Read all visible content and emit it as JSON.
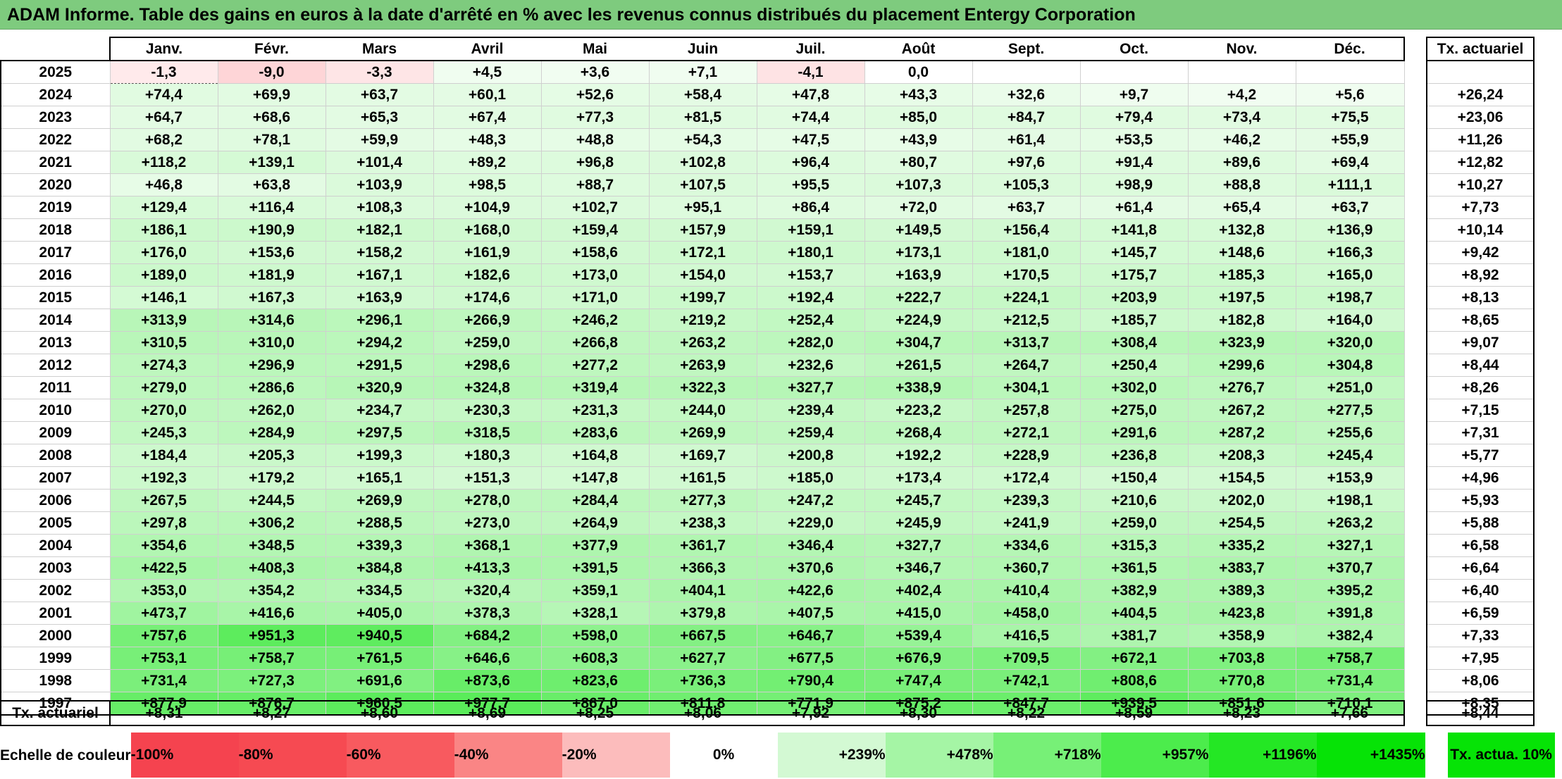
{
  "title": "ADAM Informe. Table des gains en euros à la date d'arrêté en % avec les revenus connus distribués du placement Entergy Corporation",
  "months": [
    "Janv.",
    "Févr.",
    "Mars",
    "Avril",
    "Mai",
    "Juin",
    "Juil.",
    "Août",
    "Sept.",
    "Oct.",
    "Nov.",
    "Déc."
  ],
  "tx_header": "Tx. actuariel",
  "rows": [
    {
      "year": "2025",
      "values": [
        "-1,3",
        "-9,0",
        "-3,3",
        "+4,5",
        "+3,6",
        "+7,1",
        "-4,1",
        "0,0",
        "",
        "",
        "",
        ""
      ],
      "tx": ""
    },
    {
      "year": "2024",
      "values": [
        "+74,4",
        "+69,9",
        "+63,7",
        "+60,1",
        "+52,6",
        "+58,4",
        "+47,8",
        "+43,3",
        "+32,6",
        "+9,7",
        "+4,2",
        "+5,6"
      ],
      "tx": "+26,24"
    },
    {
      "year": "2023",
      "values": [
        "+64,7",
        "+68,6",
        "+65,3",
        "+67,4",
        "+77,3",
        "+81,5",
        "+74,4",
        "+85,0",
        "+84,7",
        "+79,4",
        "+73,4",
        "+75,5"
      ],
      "tx": "+23,06"
    },
    {
      "year": "2022",
      "values": [
        "+68,2",
        "+78,1",
        "+59,9",
        "+48,3",
        "+48,8",
        "+54,3",
        "+47,5",
        "+43,9",
        "+61,4",
        "+53,5",
        "+46,2",
        "+55,9"
      ],
      "tx": "+11,26"
    },
    {
      "year": "2021",
      "values": [
        "+118,2",
        "+139,1",
        "+101,4",
        "+89,2",
        "+96,8",
        "+102,8",
        "+96,4",
        "+80,7",
        "+97,6",
        "+91,4",
        "+89,6",
        "+69,4"
      ],
      "tx": "+12,82"
    },
    {
      "year": "2020",
      "values": [
        "+46,8",
        "+63,8",
        "+103,9",
        "+98,5",
        "+88,7",
        "+107,5",
        "+95,5",
        "+107,3",
        "+105,3",
        "+98,9",
        "+88,8",
        "+111,1"
      ],
      "tx": "+10,27"
    },
    {
      "year": "2019",
      "values": [
        "+129,4",
        "+116,4",
        "+108,3",
        "+104,9",
        "+102,7",
        "+95,1",
        "+86,4",
        "+72,0",
        "+63,7",
        "+61,4",
        "+65,4",
        "+63,7"
      ],
      "tx": "+7,73"
    },
    {
      "year": "2018",
      "values": [
        "+186,1",
        "+190,9",
        "+182,1",
        "+168,0",
        "+159,4",
        "+157,9",
        "+159,1",
        "+149,5",
        "+156,4",
        "+141,8",
        "+132,8",
        "+136,9"
      ],
      "tx": "+10,14"
    },
    {
      "year": "2017",
      "values": [
        "+176,0",
        "+153,6",
        "+158,2",
        "+161,9",
        "+158,6",
        "+172,1",
        "+180,1",
        "+173,1",
        "+181,0",
        "+145,7",
        "+148,6",
        "+166,3"
      ],
      "tx": "+9,42"
    },
    {
      "year": "2016",
      "values": [
        "+189,0",
        "+181,9",
        "+167,1",
        "+182,6",
        "+173,0",
        "+154,0",
        "+153,7",
        "+163,9",
        "+170,5",
        "+175,7",
        "+185,3",
        "+165,0"
      ],
      "tx": "+8,92"
    },
    {
      "year": "2015",
      "values": [
        "+146,1",
        "+167,3",
        "+163,9",
        "+174,6",
        "+171,0",
        "+199,7",
        "+192,4",
        "+222,7",
        "+224,1",
        "+203,9",
        "+197,5",
        "+198,7"
      ],
      "tx": "+8,13"
    },
    {
      "year": "2014",
      "values": [
        "+313,9",
        "+314,6",
        "+296,1",
        "+266,9",
        "+246,2",
        "+219,2",
        "+252,4",
        "+224,9",
        "+212,5",
        "+185,7",
        "+182,8",
        "+164,0"
      ],
      "tx": "+8,65"
    },
    {
      "year": "2013",
      "values": [
        "+310,5",
        "+310,0",
        "+294,2",
        "+259,0",
        "+266,8",
        "+263,2",
        "+282,0",
        "+304,7",
        "+313,7",
        "+308,4",
        "+323,9",
        "+320,0"
      ],
      "tx": "+9,07"
    },
    {
      "year": "2012",
      "values": [
        "+274,3",
        "+296,9",
        "+291,5",
        "+298,6",
        "+277,2",
        "+263,9",
        "+232,6",
        "+261,5",
        "+264,7",
        "+250,4",
        "+299,6",
        "+304,8"
      ],
      "tx": "+8,44"
    },
    {
      "year": "2011",
      "values": [
        "+279,0",
        "+286,6",
        "+320,9",
        "+324,8",
        "+319,4",
        "+322,3",
        "+327,7",
        "+338,9",
        "+304,1",
        "+302,0",
        "+276,7",
        "+251,0"
      ],
      "tx": "+8,26"
    },
    {
      "year": "2010",
      "values": [
        "+270,0",
        "+262,0",
        "+234,7",
        "+230,3",
        "+231,3",
        "+244,0",
        "+239,4",
        "+223,2",
        "+257,8",
        "+275,0",
        "+267,2",
        "+277,5"
      ],
      "tx": "+7,15"
    },
    {
      "year": "2009",
      "values": [
        "+245,3",
        "+284,9",
        "+297,5",
        "+318,5",
        "+283,6",
        "+269,9",
        "+259,4",
        "+268,4",
        "+272,1",
        "+291,6",
        "+287,2",
        "+255,6"
      ],
      "tx": "+7,31"
    },
    {
      "year": "2008",
      "values": [
        "+184,4",
        "+205,3",
        "+199,3",
        "+180,3",
        "+164,8",
        "+169,7",
        "+200,8",
        "+192,2",
        "+228,9",
        "+236,8",
        "+208,3",
        "+245,4"
      ],
      "tx": "+5,77"
    },
    {
      "year": "2007",
      "values": [
        "+192,3",
        "+179,2",
        "+165,1",
        "+151,3",
        "+147,8",
        "+161,5",
        "+185,0",
        "+173,4",
        "+172,4",
        "+150,4",
        "+154,5",
        "+153,9"
      ],
      "tx": "+4,96"
    },
    {
      "year": "2006",
      "values": [
        "+267,5",
        "+244,5",
        "+269,9",
        "+278,0",
        "+284,4",
        "+277,3",
        "+247,2",
        "+245,7",
        "+239,3",
        "+210,6",
        "+202,0",
        "+198,1"
      ],
      "tx": "+5,93"
    },
    {
      "year": "2005",
      "values": [
        "+297,8",
        "+306,2",
        "+288,5",
        "+273,0",
        "+264,9",
        "+238,3",
        "+229,0",
        "+245,9",
        "+241,9",
        "+259,0",
        "+254,5",
        "+263,2"
      ],
      "tx": "+5,88"
    },
    {
      "year": "2004",
      "values": [
        "+354,6",
        "+348,5",
        "+339,3",
        "+368,1",
        "+377,9",
        "+361,7",
        "+346,4",
        "+327,7",
        "+334,6",
        "+315,3",
        "+335,2",
        "+327,1"
      ],
      "tx": "+6,58"
    },
    {
      "year": "2003",
      "values": [
        "+422,5",
        "+408,3",
        "+384,8",
        "+413,3",
        "+391,5",
        "+366,3",
        "+370,6",
        "+346,7",
        "+360,7",
        "+361,5",
        "+383,7",
        "+370,7"
      ],
      "tx": "+6,64"
    },
    {
      "year": "2002",
      "values": [
        "+353,0",
        "+354,2",
        "+334,5",
        "+320,4",
        "+359,1",
        "+404,1",
        "+422,6",
        "+402,4",
        "+410,4",
        "+382,9",
        "+389,3",
        "+395,2"
      ],
      "tx": "+6,40"
    },
    {
      "year": "2001",
      "values": [
        "+473,7",
        "+416,6",
        "+405,0",
        "+378,3",
        "+328,1",
        "+379,8",
        "+407,5",
        "+415,0",
        "+458,0",
        "+404,5",
        "+423,8",
        "+391,8"
      ],
      "tx": "+6,59"
    },
    {
      "year": "2000",
      "values": [
        "+757,6",
        "+951,3",
        "+940,5",
        "+684,2",
        "+598,0",
        "+667,5",
        "+646,7",
        "+539,4",
        "+416,5",
        "+381,7",
        "+358,9",
        "+382,4"
      ],
      "tx": "+7,33"
    },
    {
      "year": "1999",
      "values": [
        "+753,1",
        "+758,7",
        "+761,5",
        "+646,6",
        "+608,3",
        "+627,7",
        "+677,5",
        "+676,9",
        "+709,5",
        "+672,1",
        "+703,8",
        "+758,7"
      ],
      "tx": "+7,95"
    },
    {
      "year": "1998",
      "values": [
        "+731,4",
        "+727,3",
        "+691,6",
        "+873,6",
        "+823,6",
        "+736,3",
        "+790,4",
        "+747,4",
        "+742,1",
        "+808,6",
        "+770,8",
        "+731,4"
      ],
      "tx": "+8,06"
    },
    {
      "year": "1997",
      "values": [
        "+877,9",
        "+876,7",
        "+960,5",
        "+977,7",
        "+867,0",
        "+811,8",
        "+771,9",
        "+875,2",
        "+847,7",
        "+939,5",
        "+851,6",
        "+710,1"
      ],
      "tx": "+8,35"
    }
  ],
  "footer": {
    "label": "Tx. actuariel",
    "values": [
      "+8,31",
      "+8,27",
      "+8,60",
      "+8,69",
      "+8,25",
      "+8,06",
      "+7,92",
      "+8,30",
      "+8,22",
      "+8,59",
      "+8,23",
      "+7,66"
    ],
    "tx": "+8,44"
  },
  "scale": {
    "label": "Echelle de couleur",
    "steps": [
      {
        "text": "-100%",
        "color": "#f5434f",
        "align": "neg"
      },
      {
        "text": "-80%",
        "color": "#f64a52",
        "align": "neg"
      },
      {
        "text": "-60%",
        "color": "#f85a5f",
        "align": "neg"
      },
      {
        "text": "-40%",
        "color": "#fa8585",
        "align": "neg"
      },
      {
        "text": "-20%",
        "color": "#fcbcbc",
        "align": "neg"
      },
      {
        "text": "0%",
        "color": "#ffffff",
        "align": "zero"
      },
      {
        "text": "+239%",
        "color": "#d3f9d3",
        "align": "pos"
      },
      {
        "text": "+478%",
        "color": "#a5f5a5",
        "align": "pos"
      },
      {
        "text": "+718%",
        "color": "#77f077",
        "align": "pos"
      },
      {
        "text": "+957%",
        "color": "#4cec4c",
        "align": "pos"
      },
      {
        "text": "+1196%",
        "color": "#24e724",
        "align": "pos"
      },
      {
        "text": "+1435%",
        "color": "#06e306",
        "align": "pos"
      }
    ],
    "legend_tx": "Tx. actua. 10%",
    "legend_tx_color": "#06e306"
  },
  "colors": {
    "title_bg": "#7ecb7e"
  }
}
